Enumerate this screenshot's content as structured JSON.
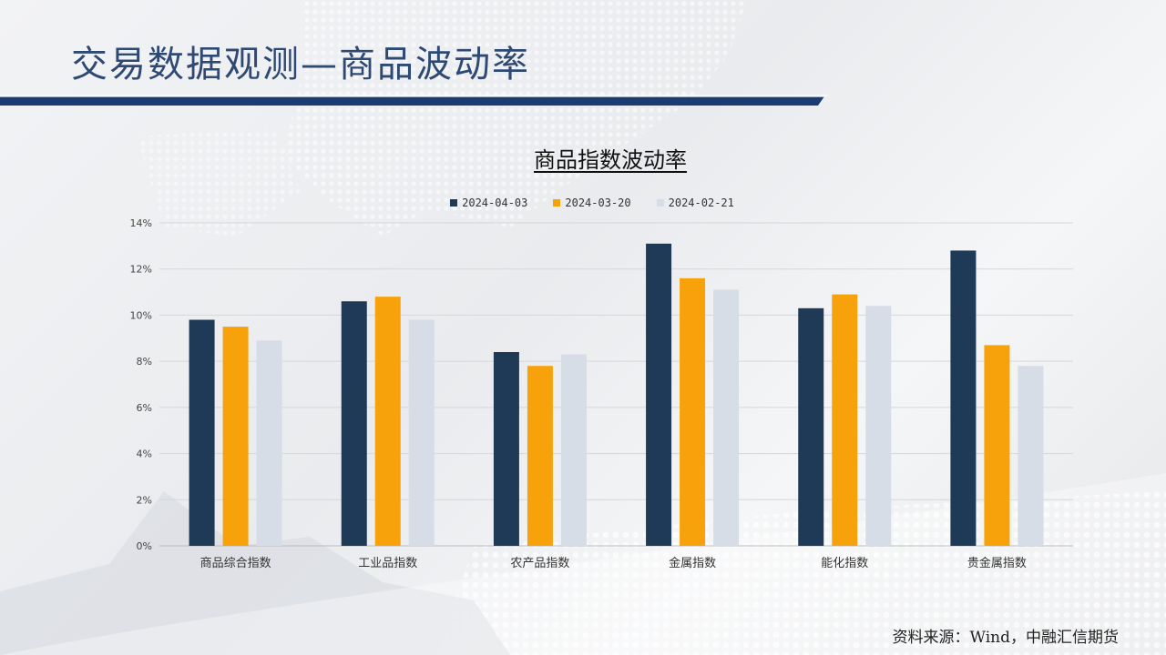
{
  "page": {
    "title": "交易数据观测—商品波动率",
    "source": "资料来源：Wind，中融汇信期货"
  },
  "colors": {
    "series1": "#1f3a56",
    "series2": "#f8a20b",
    "series3": "#d6dde6",
    "accent": "#1b3c70"
  },
  "chart_data": {
    "type": "bar",
    "title": "商品指数波动率",
    "categories": [
      "商品综合指数",
      "工业品指数",
      "农产品指数",
      "金属指数",
      "能化指数",
      "贵金属指数"
    ],
    "series": [
      {
        "name": "2024-04-03",
        "values": [
          9.8,
          10.6,
          8.4,
          13.1,
          10.3,
          12.8
        ]
      },
      {
        "name": "2024-03-20",
        "values": [
          9.5,
          10.8,
          7.8,
          11.6,
          10.9,
          8.7
        ]
      },
      {
        "name": "2024-02-21",
        "values": [
          8.9,
          9.8,
          8.3,
          11.1,
          10.4,
          7.8
        ]
      }
    ],
    "y_ticks": [
      "0%",
      "2%",
      "4%",
      "6%",
      "8%",
      "10%",
      "12%",
      "14%"
    ],
    "ylim": [
      0,
      14
    ],
    "grid": true,
    "legend_position": "top"
  }
}
